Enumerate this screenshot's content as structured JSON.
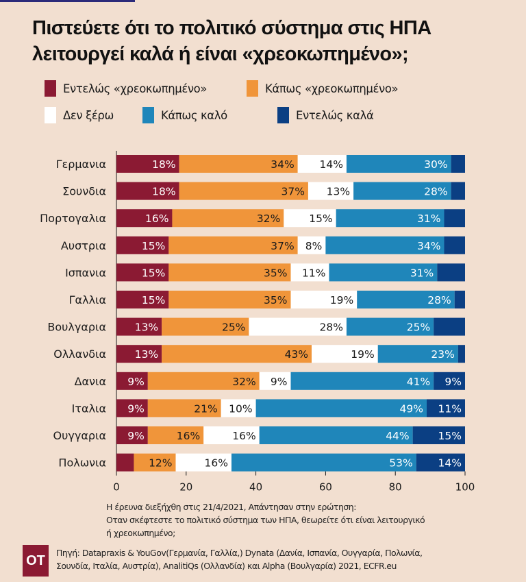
{
  "title_lines": [
    "Πιστεύετε ότι το πολιτικό σύστημα στις ΗΠΑ",
    "λειτουργεί καλά ή είναι «χρεοκωπημένο»;"
  ],
  "legend": [
    {
      "label": "Εντελώς «χρεοκωπημένο»",
      "color": "#8b1a33"
    },
    {
      "label": "Κάπως «χρεοκωπημένο»",
      "color": "#f0953a"
    },
    {
      "label": "Δεν ξέρω",
      "color": "#ffffff"
    },
    {
      "label": "Κάπως καλό",
      "color": "#1f86ba"
    },
    {
      "label": "Εντελώς καλά",
      "color": "#0b3f83"
    }
  ],
  "chart_data": {
    "type": "bar",
    "orientation": "horizontal-stacked",
    "title": "Πιστεύετε ότι το πολιτικό σύστημα στις ΗΠΑ λειτουργεί καλά ή είναι «χρεοκωπημένο»;",
    "xlabel": "",
    "ylabel": "",
    "xlim": [
      0,
      100
    ],
    "xticks": [
      0,
      20,
      40,
      60,
      80,
      100
    ],
    "grid": false,
    "legend_position": "top",
    "categories": [
      "Γερμανια",
      "Σουνδια",
      "Πορτογαλια",
      "Αυστρια",
      "Ισπανια",
      "Γαλλια",
      "Βουλγαρια",
      "Ολλανδια",
      "Δανια",
      "Ιταλια",
      "Ουγγαρια",
      "Πολωνια"
    ],
    "series": [
      {
        "name": "Εντελώς «χρεοκωπημένο»",
        "color": "#8b1a33",
        "values": [
          18,
          18,
          16,
          15,
          15,
          15,
          13,
          13,
          9,
          9,
          9,
          5
        ],
        "labels": [
          "18%",
          "18%",
          "16%",
          "15%",
          "15%",
          "15%",
          "13%",
          "13%",
          "9%",
          "9%",
          "9%",
          ""
        ]
      },
      {
        "name": "Κάπως «χρεοκωπημένο»",
        "color": "#f0953a",
        "values": [
          34,
          37,
          32,
          37,
          35,
          35,
          25,
          43,
          32,
          21,
          16,
          12
        ],
        "labels": [
          "34%",
          "37%",
          "32%",
          "37%",
          "35%",
          "35%",
          "25%",
          "43%",
          "32%",
          "21%",
          "16%",
          "12%"
        ]
      },
      {
        "name": "Δεν ξέρω",
        "color": "#ffffff",
        "values": [
          14,
          13,
          15,
          8,
          11,
          19,
          28,
          19,
          9,
          10,
          16,
          16
        ],
        "labels": [
          "14%",
          "13%",
          "15%",
          "8%",
          "11%",
          "19%",
          "28%",
          "19%",
          "9%",
          "10%",
          "16%",
          "16%"
        ]
      },
      {
        "name": "Κάπως καλό",
        "color": "#1f86ba",
        "values": [
          30,
          28,
          31,
          34,
          31,
          28,
          25,
          23,
          41,
          49,
          44,
          53
        ],
        "labels": [
          "30%",
          "28%",
          "31%",
          "34%",
          "31%",
          "28%",
          "25%",
          "23%",
          "41%",
          "49%",
          "44%",
          "53%"
        ]
      },
      {
        "name": "Εντελώς καλά",
        "color": "#0b3f83",
        "values": [
          4,
          4,
          6,
          6,
          8,
          3,
          9,
          2,
          9,
          11,
          15,
          14
        ],
        "labels": [
          "",
          "",
          "",
          "",
          "",
          "",
          "",
          "",
          "9%",
          "11%",
          "15%",
          "14%"
        ]
      }
    ]
  },
  "note_lines": [
    "Η έρευνα διεξήχθη στις 21/4/2021, Απάντησαν στην ερώτηση:",
    "Οταν σκέφτεστε το πολιτικό σύστημα των ΗΠΑ, θεωρείτε ότι είναι λειτουργικό",
    "ή χρεοκωπημένο;"
  ],
  "logo_text": "OT",
  "source_lines": [
    "Πηγή: Datapraxis & YouGov(Γερμανία, Γαλλία,) Dynata (Δανία, Ισπανία, Ουγγαρία, Πολωνία,",
    "Σουνδία, Ιταλία, Αυστρία), AnalitiQs (Ολλανδία) και Alpha (Βουλγαρία) 2021, ECFR.eu"
  ]
}
